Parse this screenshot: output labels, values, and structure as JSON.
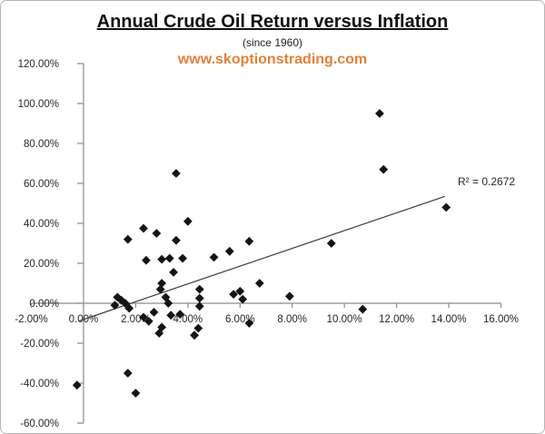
{
  "header": {
    "title": "Annual Crude Oil Return versus Inflation",
    "subtitle": "(since 1960)",
    "website": "www.skoptionstrading.com",
    "website_color": "#e2813b"
  },
  "chart_data": {
    "type": "scatter",
    "title": "Annual Crude Oil Return versus Inflation (since 1960)",
    "xlabel": "",
    "ylabel": "",
    "xlim": [
      -2,
      16
    ],
    "ylim": [
      -60,
      120
    ],
    "grid": false,
    "legend": false,
    "marker": "diamond",
    "marker_color": "#141414",
    "axis_color": "#8c8c8c",
    "trendline_color": "#3a3a3a",
    "label_color": "#262626",
    "x_ticks": [
      {
        "v": -2,
        "label": "-2.00%"
      },
      {
        "v": 0,
        "label": "0.00%"
      },
      {
        "v": 2,
        "label": "2.00%"
      },
      {
        "v": 4,
        "label": "4.00%"
      },
      {
        "v": 6,
        "label": "6.00%"
      },
      {
        "v": 8,
        "label": "8.00%"
      },
      {
        "v": 10,
        "label": "10.00%"
      },
      {
        "v": 12,
        "label": "12.00%"
      },
      {
        "v": 14,
        "label": "14.00%"
      },
      {
        "v": 16,
        "label": "16.00%"
      }
    ],
    "y_ticks": [
      {
        "v": 120,
        "label": "120.00%"
      },
      {
        "v": 100,
        "label": "100.00%"
      },
      {
        "v": 80,
        "label": "80.00%"
      },
      {
        "v": 60,
        "label": "60.00%"
      },
      {
        "v": 40,
        "label": "40.00%"
      },
      {
        "v": 20,
        "label": "20.00%"
      },
      {
        "v": 0,
        "label": "0.00%"
      },
      {
        "v": -20,
        "label": "-20.00%"
      },
      {
        "v": -40,
        "label": "-40.00%"
      },
      {
        "v": -60,
        "label": "-60.00%"
      }
    ],
    "points": [
      [
        -0.25,
        -41
      ],
      [
        1.2,
        -1
      ],
      [
        1.3,
        3
      ],
      [
        1.45,
        1.5
      ],
      [
        1.6,
        0
      ],
      [
        1.7,
        32
      ],
      [
        1.7,
        -35
      ],
      [
        1.75,
        -2.5
      ],
      [
        2.0,
        -45
      ],
      [
        2.3,
        37.5
      ],
      [
        2.3,
        -7
      ],
      [
        2.4,
        21.5
      ],
      [
        2.5,
        -9
      ],
      [
        2.7,
        -4.5
      ],
      [
        2.8,
        35
      ],
      [
        2.9,
        -15
      ],
      [
        2.95,
        7
      ],
      [
        3.0,
        22
      ],
      [
        3.0,
        10
      ],
      [
        3.0,
        -12
      ],
      [
        3.15,
        3
      ],
      [
        3.25,
        0
      ],
      [
        3.3,
        22.5
      ],
      [
        3.35,
        -6
      ],
      [
        3.45,
        15.5
      ],
      [
        3.55,
        65
      ],
      [
        3.55,
        31.5
      ],
      [
        3.7,
        -5.5
      ],
      [
        3.8,
        22.5
      ],
      [
        4.0,
        41
      ],
      [
        4.25,
        -16
      ],
      [
        4.4,
        -12.5
      ],
      [
        4.45,
        7
      ],
      [
        4.45,
        2.5
      ],
      [
        4.45,
        -1.5
      ],
      [
        5.0,
        23
      ],
      [
        5.6,
        26
      ],
      [
        5.75,
        4.5
      ],
      [
        6.0,
        6
      ],
      [
        6.1,
        2
      ],
      [
        6.35,
        31
      ],
      [
        6.35,
        -10
      ],
      [
        6.75,
        10
      ],
      [
        7.9,
        3.5
      ],
      [
        9.5,
        30
      ],
      [
        10.7,
        -3
      ],
      [
        11.35,
        95
      ],
      [
        11.5,
        67
      ],
      [
        13.9,
        48
      ]
    ],
    "trendline": {
      "x1": -0.2,
      "y1": -9,
      "x2": 13.85,
      "y2": 53.5
    },
    "annotation": {
      "text": "R² = 0.2672"
    }
  }
}
